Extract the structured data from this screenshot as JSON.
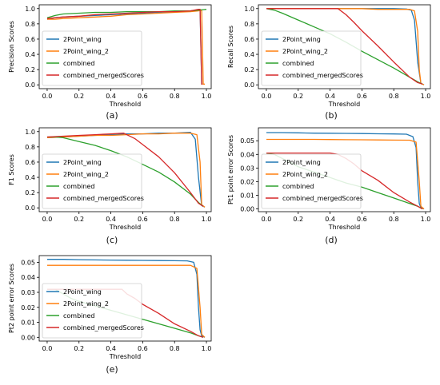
{
  "figure": {
    "legend_location": "lower-left",
    "series_colors": {
      "2Point_wing": "#1f77b4",
      "2Point_wing_2": "#ff7f0e",
      "combined": "#2ca02c",
      "combined_mergedScores": "#d62728"
    }
  },
  "chart_data": [
    {
      "type": "line",
      "caption": "(a)",
      "xlabel": "Threshold",
      "ylabel": "Precision Scores",
      "xlim": [
        -0.05,
        1.03
      ],
      "ylim": [
        -0.05,
        1.05
      ],
      "xticks": [
        "0.0",
        "0.2",
        "0.4",
        "0.6",
        "0.8",
        "1.0"
      ],
      "yticks": [
        "0.0",
        "0.2",
        "0.4",
        "0.6",
        "0.8",
        "1.0"
      ],
      "xtick_values": [
        0,
        0.2,
        0.4,
        0.6,
        0.8,
        1.0
      ],
      "ytick_values": [
        0,
        0.2,
        0.4,
        0.6,
        0.8,
        1.0
      ],
      "grid": false,
      "legend": "lower-left",
      "series": [
        {
          "name": "2Point_wing",
          "color": "#1f77b4",
          "x": [
            0.0,
            0.05,
            0.1,
            0.2,
            0.3,
            0.4,
            0.5,
            0.6,
            0.7,
            0.8,
            0.9,
            0.95,
            0.96,
            0.965,
            0.97,
            0.975
          ],
          "y": [
            0.86,
            0.88,
            0.89,
            0.9,
            0.91,
            0.92,
            0.93,
            0.94,
            0.95,
            0.96,
            0.97,
            0.98,
            0.98,
            0.5,
            0.01,
            0.01
          ]
        },
        {
          "name": "2Point_wing_2",
          "color": "#ff7f0e",
          "x": [
            0.0,
            0.05,
            0.1,
            0.2,
            0.3,
            0.4,
            0.5,
            0.6,
            0.7,
            0.8,
            0.9,
            0.95,
            0.97,
            0.975,
            0.98,
            0.99
          ],
          "y": [
            0.86,
            0.86,
            0.87,
            0.88,
            0.89,
            0.9,
            0.92,
            0.93,
            0.94,
            0.95,
            0.96,
            0.97,
            0.98,
            0.5,
            0.01,
            0.01
          ]
        },
        {
          "name": "combined",
          "color": "#2ca02c",
          "x": [
            0.0,
            0.05,
            0.1,
            0.2,
            0.3,
            0.4,
            0.5,
            0.6,
            0.7,
            0.8,
            0.9,
            0.95,
            1.0
          ],
          "y": [
            0.88,
            0.91,
            0.93,
            0.94,
            0.95,
            0.95,
            0.96,
            0.96,
            0.96,
            0.97,
            0.97,
            0.98,
            0.99
          ]
        },
        {
          "name": "combined_mergedScores",
          "color": "#d62728",
          "x": [
            0.0,
            0.05,
            0.1,
            0.2,
            0.3,
            0.4,
            0.5,
            0.6,
            0.7,
            0.8,
            0.9,
            0.95,
            0.96,
            0.965,
            0.97,
            0.975
          ],
          "y": [
            0.87,
            0.88,
            0.89,
            0.9,
            0.92,
            0.93,
            0.94,
            0.95,
            0.96,
            0.96,
            0.97,
            0.99,
            0.99,
            0.5,
            0.01,
            0.01
          ]
        }
      ]
    },
    {
      "type": "line",
      "caption": "(b)",
      "xlabel": "Threshold",
      "ylabel": "Recall Scores",
      "xlim": [
        -0.05,
        1.03
      ],
      "ylim": [
        -0.05,
        1.05
      ],
      "xticks": [
        "0.0",
        "0.2",
        "0.4",
        "0.6",
        "0.8",
        "1.0"
      ],
      "yticks": [
        "0.0",
        "0.2",
        "0.4",
        "0.6",
        "0.8",
        "1.0"
      ],
      "xtick_values": [
        0,
        0.2,
        0.4,
        0.6,
        0.8,
        1.0
      ],
      "ytick_values": [
        0,
        0.2,
        0.4,
        0.6,
        0.8,
        1.0
      ],
      "grid": false,
      "legend": "lower-left",
      "series": [
        {
          "name": "2Point_wing",
          "color": "#1f77b4",
          "x": [
            0.0,
            0.1,
            0.2,
            0.3,
            0.4,
            0.5,
            0.6,
            0.7,
            0.8,
            0.88,
            0.91,
            0.93,
            0.95,
            0.97,
            0.99
          ],
          "y": [
            1.0,
            1.0,
            1.0,
            1.0,
            1.0,
            1.0,
            1.0,
            1.0,
            1.0,
            0.995,
            0.98,
            0.85,
            0.3,
            0.02,
            0.0
          ]
        },
        {
          "name": "2Point_wing_2",
          "color": "#ff7f0e",
          "x": [
            0.0,
            0.1,
            0.2,
            0.3,
            0.4,
            0.5,
            0.6,
            0.7,
            0.8,
            0.9,
            0.93,
            0.95,
            0.96,
            0.97,
            0.99
          ],
          "y": [
            1.0,
            1.0,
            1.0,
            1.0,
            1.0,
            1.0,
            1.0,
            0.99,
            0.99,
            0.99,
            0.97,
            0.7,
            0.2,
            0.02,
            0.0
          ]
        },
        {
          "name": "combined",
          "color": "#2ca02c",
          "x": [
            0.0,
            0.05,
            0.1,
            0.2,
            0.3,
            0.4,
            0.5,
            0.6,
            0.7,
            0.8,
            0.9,
            0.95,
            0.98
          ],
          "y": [
            1.0,
            0.98,
            0.94,
            0.85,
            0.76,
            0.67,
            0.56,
            0.44,
            0.33,
            0.22,
            0.1,
            0.04,
            0.01
          ]
        },
        {
          "name": "combined_mergedScores",
          "color": "#d62728",
          "x": [
            0.0,
            0.1,
            0.2,
            0.3,
            0.4,
            0.45,
            0.5,
            0.55,
            0.6,
            0.7,
            0.8,
            0.9,
            0.95,
            0.98
          ],
          "y": [
            1.0,
            1.0,
            1.0,
            1.0,
            1.0,
            1.0,
            0.92,
            0.82,
            0.71,
            0.51,
            0.3,
            0.1,
            0.03,
            0.01
          ]
        }
      ]
    },
    {
      "type": "line",
      "caption": "(c)",
      "xlabel": "Threshold",
      "ylabel": "F1 Scores",
      "xlim": [
        -0.05,
        1.03
      ],
      "ylim": [
        -0.05,
        1.05
      ],
      "xticks": [
        "0.0",
        "0.2",
        "0.4",
        "0.6",
        "0.8",
        "1.0"
      ],
      "yticks": [
        "0.0",
        "0.2",
        "0.4",
        "0.6",
        "0.8",
        "1.0"
      ],
      "xtick_values": [
        0,
        0.2,
        0.4,
        0.6,
        0.8,
        1.0
      ],
      "ytick_values": [
        0,
        0.2,
        0.4,
        0.6,
        0.8,
        1.0
      ],
      "grid": false,
      "legend": "lower-left",
      "series": [
        {
          "name": "2Point_wing",
          "color": "#1f77b4",
          "x": [
            0.0,
            0.1,
            0.2,
            0.3,
            0.4,
            0.5,
            0.6,
            0.7,
            0.8,
            0.9,
            0.93,
            0.95,
            0.97,
            0.99
          ],
          "y": [
            0.92,
            0.93,
            0.94,
            0.95,
            0.96,
            0.97,
            0.97,
            0.98,
            0.98,
            0.99,
            0.9,
            0.4,
            0.03,
            0.01
          ]
        },
        {
          "name": "2Point_wing_2",
          "color": "#ff7f0e",
          "x": [
            0.0,
            0.1,
            0.2,
            0.3,
            0.4,
            0.5,
            0.6,
            0.7,
            0.8,
            0.9,
            0.94,
            0.96,
            0.97,
            0.99
          ],
          "y": [
            0.92,
            0.93,
            0.94,
            0.95,
            0.95,
            0.96,
            0.97,
            0.97,
            0.98,
            0.98,
            0.96,
            0.6,
            0.04,
            0.01
          ]
        },
        {
          "name": "combined",
          "color": "#2ca02c",
          "x": [
            0.0,
            0.05,
            0.1,
            0.2,
            0.3,
            0.4,
            0.5,
            0.6,
            0.7,
            0.8,
            0.9,
            0.95,
            0.98
          ],
          "y": [
            0.93,
            0.93,
            0.92,
            0.87,
            0.82,
            0.75,
            0.67,
            0.57,
            0.47,
            0.34,
            0.18,
            0.07,
            0.02
          ]
        },
        {
          "name": "combined_mergedScores",
          "color": "#d62728",
          "x": [
            0.0,
            0.1,
            0.2,
            0.3,
            0.4,
            0.48,
            0.55,
            0.6,
            0.7,
            0.8,
            0.9,
            0.95,
            0.98
          ],
          "y": [
            0.93,
            0.94,
            0.95,
            0.96,
            0.97,
            0.98,
            0.91,
            0.83,
            0.67,
            0.46,
            0.2,
            0.06,
            0.02
          ]
        }
      ]
    },
    {
      "type": "line",
      "caption": "(d)",
      "xlabel": "Threshold",
      "ylabel": "Pt1 point error Scores",
      "xlim": [
        -0.05,
        1.03
      ],
      "ylim": [
        -0.002,
        0.0595
      ],
      "xticks": [
        "0.0",
        "0.2",
        "0.4",
        "0.6",
        "0.8",
        "1.0"
      ],
      "yticks": [
        "0.00",
        "0.01",
        "0.02",
        "0.03",
        "0.04",
        "0.05"
      ],
      "xtick_values": [
        0,
        0.2,
        0.4,
        0.6,
        0.8,
        1.0
      ],
      "ytick_values": [
        0,
        0.01,
        0.02,
        0.03,
        0.04,
        0.05
      ],
      "grid": false,
      "legend": "lower-left",
      "series": [
        {
          "name": "2Point_wing",
          "color": "#1f77b4",
          "x": [
            0.0,
            0.1,
            0.2,
            0.3,
            0.4,
            0.5,
            0.6,
            0.7,
            0.8,
            0.88,
            0.92,
            0.94,
            0.95,
            0.96,
            0.97,
            0.99
          ],
          "y": [
            0.056,
            0.056,
            0.0558,
            0.0556,
            0.0555,
            0.0554,
            0.0553,
            0.0551,
            0.055,
            0.0548,
            0.053,
            0.045,
            0.02,
            0.004,
            0.001,
            0.0
          ]
        },
        {
          "name": "2Point_wing_2",
          "color": "#ff7f0e",
          "x": [
            0.0,
            0.1,
            0.2,
            0.3,
            0.4,
            0.5,
            0.6,
            0.7,
            0.8,
            0.9,
            0.94,
            0.96,
            0.97,
            0.99
          ],
          "y": [
            0.051,
            0.051,
            0.051,
            0.051,
            0.0509,
            0.0508,
            0.0507,
            0.0506,
            0.0505,
            0.0504,
            0.049,
            0.02,
            0.002,
            0.0
          ]
        },
        {
          "name": "combined",
          "color": "#2ca02c",
          "x": [
            0.0,
            0.05,
            0.1,
            0.15,
            0.2,
            0.3,
            0.4,
            0.5,
            0.6,
            0.7,
            0.8,
            0.9,
            0.95,
            0.98
          ],
          "y": [
            0.041,
            0.04,
            0.037,
            0.034,
            0.031,
            0.027,
            0.023,
            0.019,
            0.016,
            0.012,
            0.008,
            0.004,
            0.002,
            0.0
          ]
        },
        {
          "name": "combined_mergedScores",
          "color": "#d62728",
          "x": [
            0.0,
            0.1,
            0.2,
            0.3,
            0.4,
            0.45,
            0.5,
            0.55,
            0.6,
            0.7,
            0.8,
            0.9,
            0.95,
            0.98
          ],
          "y": [
            0.041,
            0.041,
            0.041,
            0.041,
            0.041,
            0.04,
            0.037,
            0.033,
            0.028,
            0.021,
            0.012,
            0.005,
            0.002,
            0.0
          ]
        }
      ]
    },
    {
      "type": "line",
      "caption": "(e)",
      "xlabel": "Threshold",
      "ylabel": "Pt2 point error Scores",
      "xlim": [
        -0.05,
        1.03
      ],
      "ylim": [
        -0.0025,
        0.0545
      ],
      "xticks": [
        "0.0",
        "0.2",
        "0.4",
        "0.6",
        "0.8",
        "1.0"
      ],
      "yticks": [
        "0.00",
        "0.01",
        "0.02",
        "0.03",
        "0.04",
        "0.05"
      ],
      "xtick_values": [
        0,
        0.2,
        0.4,
        0.6,
        0.8,
        1.0
      ],
      "ytick_values": [
        0,
        0.01,
        0.02,
        0.03,
        0.04,
        0.05
      ],
      "grid": false,
      "legend": "lower-left",
      "series": [
        {
          "name": "2Point_wing",
          "color": "#1f77b4",
          "x": [
            0.0,
            0.1,
            0.2,
            0.3,
            0.4,
            0.5,
            0.6,
            0.7,
            0.8,
            0.88,
            0.92,
            0.94,
            0.95,
            0.96,
            0.97,
            0.99
          ],
          "y": [
            0.052,
            0.052,
            0.0518,
            0.0516,
            0.0515,
            0.0514,
            0.0513,
            0.0512,
            0.0511,
            0.051,
            0.05,
            0.042,
            0.02,
            0.005,
            0.001,
            0.0
          ]
        },
        {
          "name": "2Point_wing_2",
          "color": "#ff7f0e",
          "x": [
            0.0,
            0.1,
            0.2,
            0.3,
            0.4,
            0.5,
            0.6,
            0.7,
            0.8,
            0.9,
            0.94,
            0.96,
            0.97,
            0.99
          ],
          "y": [
            0.048,
            0.048,
            0.048,
            0.048,
            0.048,
            0.048,
            0.048,
            0.048,
            0.048,
            0.048,
            0.046,
            0.02,
            0.002,
            0.0
          ]
        },
        {
          "name": "combined",
          "color": "#2ca02c",
          "x": [
            0.0,
            0.05,
            0.1,
            0.15,
            0.2,
            0.3,
            0.4,
            0.5,
            0.6,
            0.7,
            0.8,
            0.9,
            0.95,
            0.98
          ],
          "y": [
            0.032,
            0.032,
            0.029,
            0.026,
            0.024,
            0.021,
            0.018,
            0.015,
            0.012,
            0.009,
            0.006,
            0.003,
            0.001,
            0.0
          ]
        },
        {
          "name": "combined_mergedScores",
          "color": "#d62728",
          "x": [
            0.0,
            0.1,
            0.2,
            0.3,
            0.4,
            0.47,
            0.5,
            0.55,
            0.6,
            0.7,
            0.8,
            0.9,
            0.95,
            0.98
          ],
          "y": [
            0.032,
            0.032,
            0.032,
            0.032,
            0.032,
            0.032,
            0.029,
            0.026,
            0.022,
            0.016,
            0.009,
            0.004,
            0.001,
            0.0
          ]
        }
      ]
    }
  ]
}
